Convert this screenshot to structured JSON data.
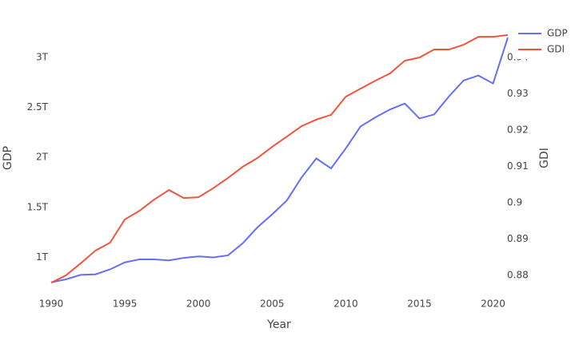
{
  "chart_data": {
    "type": "line",
    "x_label": "Year",
    "y_label": "GDP",
    "y2_label": "GDI",
    "x": [
      1990,
      1991,
      1992,
      1993,
      1994,
      1995,
      1996,
      1997,
      1998,
      1999,
      2000,
      2001,
      2002,
      2003,
      2004,
      2005,
      2006,
      2007,
      2008,
      2009,
      2010,
      2011,
      2012,
      2013,
      2014,
      2015,
      2016,
      2017,
      2018,
      2019,
      2020,
      2021
    ],
    "series": [
      {
        "name": "GDP",
        "color": "#636efa",
        "values": [
          750000000000,
          780000000000,
          825000000000,
          830000000000,
          880000000000,
          950000000000,
          980000000000,
          980000000000,
          970000000000,
          995000000000,
          1010000000000,
          1000000000000,
          1020000000000,
          1140000000000,
          1300000000000,
          1430000000000,
          1570000000000,
          1800000000000,
          1990000000000,
          1890000000000,
          2090000000000,
          2310000000000,
          2400000000000,
          2480000000000,
          2540000000000,
          2390000000000,
          2430000000000,
          2610000000000,
          2770000000000,
          2820000000000,
          2740000000000,
          3200000000000
        ]
      },
      {
        "name": "GDI",
        "color": "#ef553b",
        "axis": "y2",
        "values": [
          0.878,
          0.88,
          0.8833,
          0.8868,
          0.889,
          0.8954,
          0.8978,
          0.9009,
          0.9035,
          0.9013,
          0.9015,
          0.904,
          0.9068,
          0.9099,
          0.9123,
          0.9154,
          0.9182,
          0.9211,
          0.9229,
          0.9242,
          0.9292,
          0.9314,
          0.9336,
          0.9356,
          0.9391,
          0.94,
          0.9422,
          0.9422,
          0.9435,
          0.9457,
          0.9457,
          0.9462
        ]
      }
    ],
    "xlim": [
      1990,
      2021
    ],
    "xticks": [
      1990,
      1995,
      2000,
      2005,
      2010,
      2015,
      2020
    ],
    "ylim": [
      740000000000,
      3240000000000
    ],
    "yticks": [
      {
        "value": 1000000000000,
        "label": "1T"
      },
      {
        "value": 1500000000000,
        "label": "1.5T"
      },
      {
        "value": 2000000000000,
        "label": "2T"
      },
      {
        "value": 2500000000000,
        "label": "2.5T"
      },
      {
        "value": 3000000000000,
        "label": "3T"
      }
    ],
    "y2lim": [
      0.8778,
      0.9466
    ],
    "y2ticks": [
      0.88,
      0.89,
      0.9,
      0.91,
      0.92,
      0.93,
      0.94
    ],
    "grid": false,
    "legend": "top-right"
  }
}
